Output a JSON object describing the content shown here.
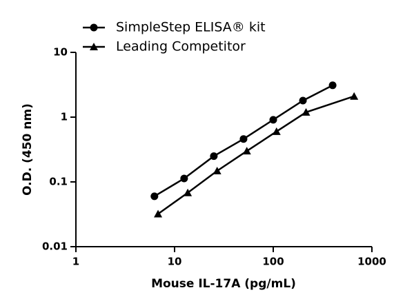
{
  "chart_data": {
    "type": "scatter",
    "xlabel": "Mouse IL-17A (pg/mL)",
    "ylabel": "O.D. (450 nm)",
    "xscale": "log",
    "yscale": "log",
    "xlim": [
      1,
      1000
    ],
    "ylim": [
      0.01,
      10
    ],
    "xticks": [
      1,
      10,
      100,
      1000
    ],
    "yticks": [
      0.01,
      0.1,
      1,
      10
    ],
    "legend": "top-left",
    "series": [
      {
        "name": "SimpleStep ELISA® kit",
        "color": "#000000",
        "marker": "circle",
        "x": [
          6.25,
          12.5,
          25,
          50,
          100,
          200,
          400
        ],
        "values": [
          0.06,
          0.113,
          0.25,
          0.46,
          0.91,
          1.8,
          3.1
        ]
      },
      {
        "name": "Leading Competitor",
        "color": "#000000",
        "marker": "triangle",
        "x": [
          6.8,
          13.6,
          27,
          54,
          108,
          215,
          660
        ],
        "values": [
          0.032,
          0.068,
          0.148,
          0.3,
          0.6,
          1.19,
          2.1
        ]
      }
    ]
  }
}
